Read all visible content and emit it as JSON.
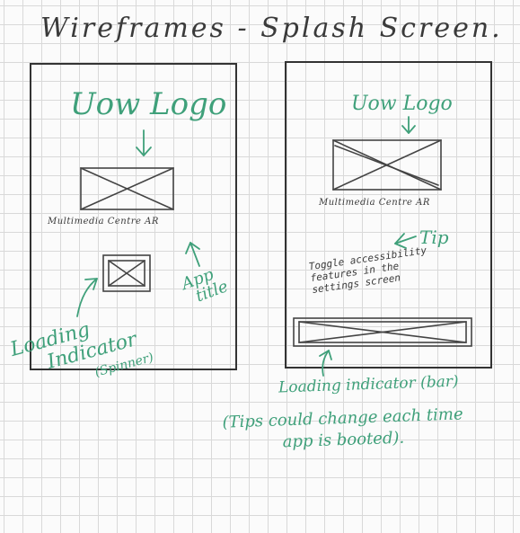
{
  "title": "Wireframes - Splash Screen.",
  "left": {
    "logo_note": "Uow Logo",
    "app_title_text": "Multimedia Centre AR",
    "app_title_note": [
      "App",
      "title"
    ],
    "loading_note": [
      "Loading",
      "Indicator",
      "(Spinner)"
    ]
  },
  "right": {
    "logo_note": "Uow Logo",
    "app_title_text": "Multimedia Centre AR",
    "tip_note": "Tip",
    "tip_text": [
      "Toggle accessibility",
      "features in the",
      "settings screen"
    ],
    "loading_note": "Loading indicator (bar)",
    "footnote": [
      "(Tips could change each time",
      "app is booted)."
    ]
  },
  "colors": {
    "ink": "#333333",
    "green": "#3fa07a",
    "grid": "#d9d9d9"
  }
}
